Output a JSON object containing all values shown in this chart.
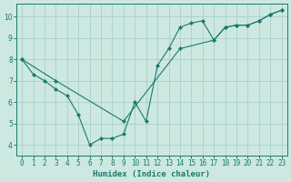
{
  "line1_x": [
    0,
    1,
    2,
    3,
    4,
    5,
    6,
    7,
    8,
    9,
    10,
    11,
    12,
    13,
    14,
    15,
    16,
    17,
    18,
    19,
    20,
    21,
    22,
    23
  ],
  "line1_y": [
    8.0,
    7.3,
    7.0,
    6.6,
    6.3,
    5.4,
    4.0,
    4.3,
    4.3,
    4.5,
    6.0,
    5.1,
    7.7,
    8.5,
    9.5,
    9.7,
    9.8,
    8.9,
    9.5,
    9.6,
    9.6,
    9.8,
    10.1,
    10.3
  ],
  "line2_x": [
    0,
    3,
    9,
    14,
    17,
    18,
    19,
    20,
    21,
    22,
    23
  ],
  "line2_y": [
    8.0,
    7.0,
    5.1,
    8.5,
    8.9,
    9.5,
    9.6,
    9.6,
    9.8,
    10.1,
    10.3
  ],
  "line_color": "#1a7a6e",
  "bg_color": "#cce8e0",
  "grid_color": "#aacfca",
  "xlabel": "Humidex (Indice chaleur)",
  "xlim": [
    -0.5,
    23.5
  ],
  "ylim": [
    3.5,
    10.6
  ],
  "yticks": [
    4,
    5,
    6,
    7,
    8,
    9,
    10
  ],
  "xticks": [
    0,
    1,
    2,
    3,
    4,
    5,
    6,
    7,
    8,
    9,
    10,
    11,
    12,
    13,
    14,
    15,
    16,
    17,
    18,
    19,
    20,
    21,
    22,
    23
  ],
  "marker": "D",
  "markersize": 2.0,
  "linewidth": 0.8,
  "tick_fontsize": 5.5,
  "xlabel_fontsize": 6.5,
  "xlabel_fontweight": "bold"
}
